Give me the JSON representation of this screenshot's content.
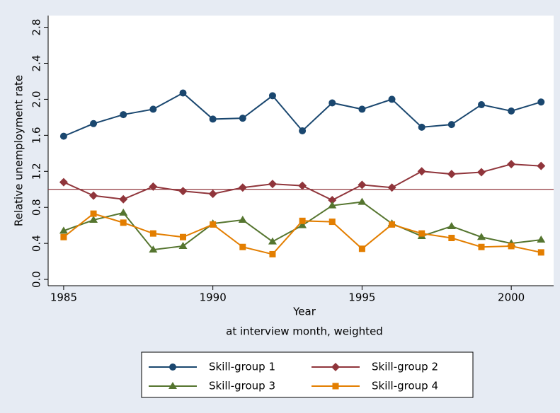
{
  "chart_data": {
    "type": "line",
    "xlabel": "Year",
    "xlabel_note": "at interview month, weighted",
    "ylabel": "Relative unemployment rate",
    "x": [
      1985,
      1986,
      1987,
      1988,
      1989,
      1990,
      1991,
      1992,
      1993,
      1994,
      1995,
      1996,
      1997,
      1998,
      1999,
      2000,
      2001
    ],
    "series": [
      {
        "name": "Skill-group 1",
        "color": "#1a476f",
        "marker": "circle",
        "values": [
          1.59,
          1.73,
          1.83,
          1.89,
          2.07,
          1.78,
          1.79,
          2.04,
          1.65,
          1.96,
          1.89,
          2.0,
          1.69,
          1.72,
          1.94,
          1.87,
          1.97
        ]
      },
      {
        "name": "Skill-group 2",
        "color": "#90353b",
        "marker": "diamond",
        "values": [
          1.08,
          0.93,
          0.89,
          1.03,
          0.98,
          0.95,
          1.02,
          1.06,
          1.04,
          0.88,
          1.05,
          1.02,
          1.2,
          1.17,
          1.19,
          1.28,
          1.26
        ]
      },
      {
        "name": "Skill-group 3",
        "color": "#55752f",
        "marker": "triangle",
        "values": [
          0.54,
          0.66,
          0.74,
          0.33,
          0.37,
          0.62,
          0.66,
          0.42,
          0.6,
          0.82,
          0.86,
          0.62,
          0.48,
          0.59,
          0.47,
          0.4,
          0.44
        ]
      },
      {
        "name": "Skill-group 4",
        "color": "#e37e00",
        "marker": "square",
        "values": [
          0.47,
          0.73,
          0.63,
          0.51,
          0.47,
          0.61,
          0.36,
          0.28,
          0.65,
          0.64,
          0.34,
          0.61,
          0.51,
          0.46,
          0.36,
          0.37,
          0.3
        ]
      }
    ],
    "reference_line": {
      "value": 1,
      "color": "#90353b"
    },
    "xlim": [
      1984.48,
      2001.42
    ],
    "xticks": [
      1985,
      1990,
      1995,
      2000
    ],
    "ylim": [
      -0.07,
      2.93
    ],
    "yticks": [
      {
        "value": 0,
        "label": "0.0"
      },
      0.4,
      0.8,
      1.2,
      1.6,
      {
        "value": 2,
        "label": "2.0"
      },
      2.4,
      2.8
    ],
    "grid": false
  }
}
